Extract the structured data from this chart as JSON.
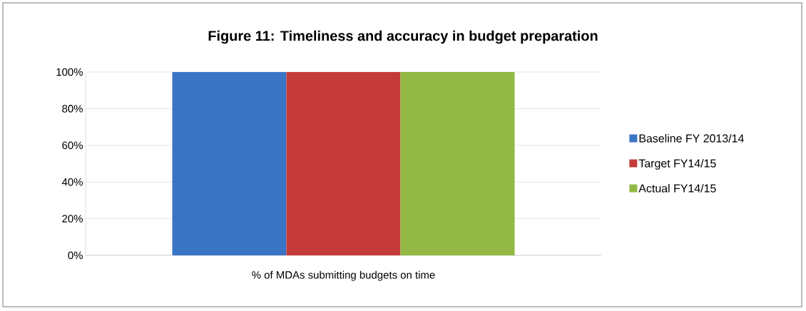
{
  "chart_data": {
    "type": "bar",
    "title": "Figure 11: Timeliness and accuracy in budget preparation",
    "categories": [
      "% of MDAs submitting budgets on time"
    ],
    "series": [
      {
        "name": "Baseline FY 2013/14",
        "color": "#3a74c4",
        "values": [
          100
        ]
      },
      {
        "name": "Target FY14/15",
        "color": "#c43b39",
        "values": [
          100
        ]
      },
      {
        "name": "Actual FY14/15",
        "color": "#93b944",
        "values": [
          100
        ]
      }
    ],
    "ylim": [
      0,
      100
    ],
    "yticks": [
      {
        "value": 0,
        "label": "0%"
      },
      {
        "value": 20,
        "label": "20%"
      },
      {
        "value": 40,
        "label": "40%"
      },
      {
        "value": 60,
        "label": "60%"
      },
      {
        "value": 80,
        "label": "80%"
      },
      {
        "value": 100,
        "label": "100%"
      }
    ],
    "grid": "y",
    "legend": "right"
  }
}
